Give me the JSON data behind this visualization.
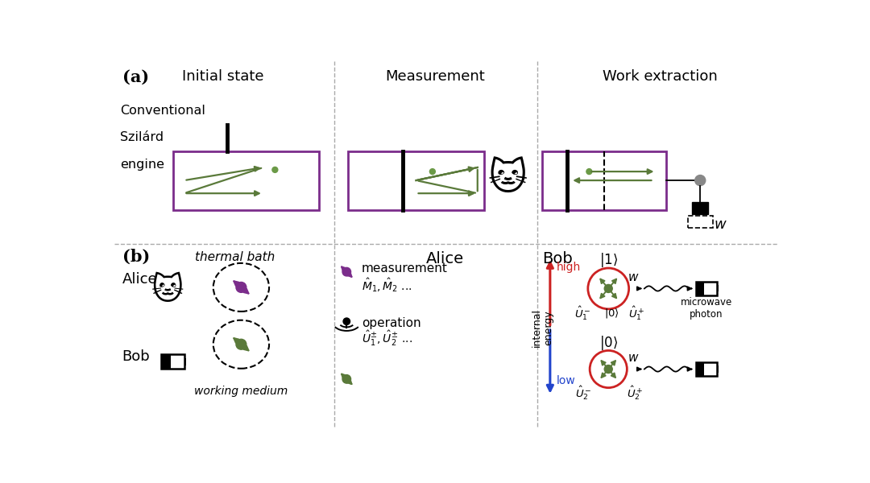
{
  "bg_color": "#ffffff",
  "grid_color": "#aaaaaa",
  "purple_color": "#7B2D8B",
  "green_color": "#5A7A3A",
  "panel_a_label": "(a)",
  "panel_b_label": "(b)",
  "col_labels_a": [
    "Initial state",
    "Measurement",
    "Work extraction"
  ],
  "row_label_a": [
    "Conventional",
    "Szilárd",
    "engine"
  ],
  "alice_label": "Alice",
  "bob_label": "Bob",
  "thermal_bath": "thermal bath",
  "working_medium": "working medium",
  "col2_bob": "Bob",
  "col2_alice": "Alice",
  "measurement_text": "measurement",
  "mhat_text": "$\\hat{M}_1, \\hat{M}_2$ ...",
  "operation_text": "operation",
  "uhat_text": "$\\hat{U}_1^{\\pm}, \\hat{U}_2^{\\pm}$ ...",
  "ket1": "$|1\\rangle$",
  "ket0": "$|0\\rangle$",
  "high_text": "high",
  "low_text": "low",
  "internal_energy": "internal\nenergy",
  "w_text": "$w$",
  "microwave_photon": "microwave\nphoton",
  "u1m": "$\\hat{U}_1^-$",
  "u1p": "$\\hat{U}_1^+$",
  "u2m": "$\\hat{U}_2^-$",
  "u2p": "$\\hat{U}_2^+$"
}
